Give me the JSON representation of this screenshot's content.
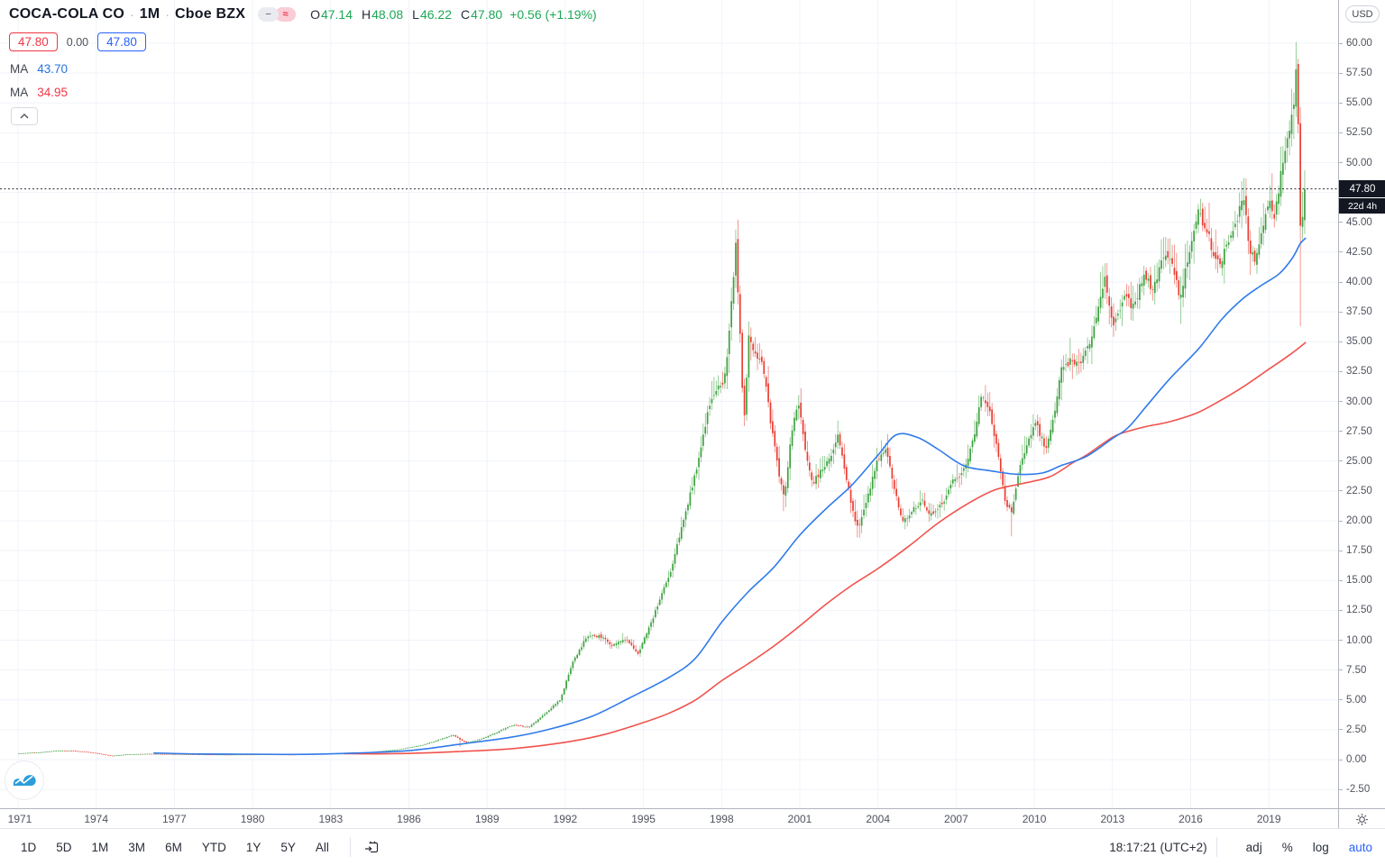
{
  "header": {
    "symbol": "COCA-COLA CO",
    "separator": "·",
    "interval": "1M",
    "exchange": "Cboe BZX",
    "toggle_icons": {
      "hide": "−",
      "approx": "≈"
    },
    "ohlc": {
      "o_label": "O",
      "o": "47.14",
      "h_label": "H",
      "h": "48.08",
      "l_label": "L",
      "l": "46.22",
      "c_label": "C",
      "c": "47.80",
      "change": "+0.56 (+1.19%)"
    },
    "price_boxes": {
      "sell": "47.80",
      "spread": "0.00",
      "buy": "47.80"
    },
    "ma1": {
      "label": "MA",
      "value": "43.70",
      "color": "#2f7bea"
    },
    "ma2": {
      "label": "MA",
      "value": "34.95",
      "color": "#f23645"
    }
  },
  "price_axis": {
    "currency": "USD",
    "current_price": "47.80",
    "countdown": "22d 4h",
    "ticks": [
      "60.00",
      "57.50",
      "55.00",
      "52.50",
      "50.00",
      "45.00",
      "42.50",
      "40.00",
      "37.50",
      "35.00",
      "32.50",
      "30.00",
      "27.50",
      "25.00",
      "22.50",
      "20.00",
      "17.50",
      "15.00",
      "12.50",
      "10.00",
      "7.50",
      "5.00",
      "2.50",
      "0.00",
      "-2.50"
    ],
    "tick_values": [
      60,
      57.5,
      55,
      52.5,
      50,
      45,
      42.5,
      40,
      37.5,
      35,
      32.5,
      30,
      27.5,
      25,
      22.5,
      20,
      17.5,
      15,
      12.5,
      10,
      7.5,
      5,
      2.5,
      0,
      -2.5
    ]
  },
  "time_axis": {
    "years": [
      1971,
      1974,
      1977,
      1980,
      1983,
      1986,
      1989,
      1992,
      1995,
      1998,
      2001,
      2004,
      2007,
      2010,
      2013,
      2016,
      2019
    ]
  },
  "toolbar": {
    "ranges": [
      "1D",
      "5D",
      "1M",
      "3M",
      "6M",
      "YTD",
      "1Y",
      "5Y",
      "All"
    ],
    "clock": "18:17:21 (UTC+2)",
    "adj": "adj",
    "percent": "%",
    "log": "log",
    "auto": "auto"
  },
  "chart_data": {
    "type": "candlestick",
    "title": "COCA-COLA CO · 1M · Cboe BZX",
    "ylabel": "USD",
    "x_range": [
      1971,
      2020.6
    ],
    "y_range": [
      -2.5,
      60
    ],
    "y_step": 2.5,
    "grid": true,
    "current_price": 47.8,
    "colors": {
      "up": "#3da13f",
      "down": "#ea3d32",
      "ma_blue": "#2f7bea",
      "ma_red": "#f0524d",
      "grid": "#f0f3fa",
      "dotted_line": "#2a2e39",
      "label_bg": "#131722"
    },
    "close_anchors": [
      [
        1971.0,
        0.52
      ],
      [
        1971.8,
        0.6
      ],
      [
        1972.5,
        0.74
      ],
      [
        1973.2,
        0.72
      ],
      [
        1973.8,
        0.6
      ],
      [
        1974.6,
        0.31
      ],
      [
        1975.2,
        0.44
      ],
      [
        1976.0,
        0.48
      ],
      [
        1977.5,
        0.44
      ],
      [
        1979.0,
        0.41
      ],
      [
        1980.5,
        0.43
      ],
      [
        1981.5,
        0.41
      ],
      [
        1982.5,
        0.46
      ],
      [
        1983.5,
        0.56
      ],
      [
        1984.5,
        0.62
      ],
      [
        1985.5,
        0.82
      ],
      [
        1986.5,
        1.2
      ],
      [
        1987.7,
        2.05
      ],
      [
        1987.96,
        1.7,
        1.05,
        null
      ],
      [
        1988.2,
        1.4
      ],
      [
        1988.6,
        1.6
      ],
      [
        1989.2,
        2.1
      ],
      [
        1990.0,
        2.9
      ],
      [
        1990.6,
        2.7
      ],
      [
        1991.2,
        3.8
      ],
      [
        1991.8,
        5.0
      ],
      [
        1992.3,
        8.2
      ],
      [
        1992.8,
        10.2
      ],
      [
        1993.3,
        10.4
      ],
      [
        1993.8,
        9.6
      ],
      [
        1994.3,
        10.1
      ],
      [
        1994.8,
        8.9
      ],
      [
        1995.3,
        11.5
      ],
      [
        1996.0,
        15.5
      ],
      [
        1996.6,
        20.5
      ],
      [
        1997.1,
        25.0
      ],
      [
        1997.5,
        29.5
      ],
      [
        1997.8,
        31.0
      ],
      [
        1998.1,
        31.5
      ],
      [
        1998.3,
        36.0
      ],
      [
        1998.54,
        43.0,
        null,
        44.4
      ],
      [
        1998.7,
        36.0
      ],
      [
        1998.85,
        28.0
      ],
      [
        1999.05,
        35.5
      ],
      [
        1999.3,
        34.0
      ],
      [
        1999.6,
        33.0
      ],
      [
        1999.9,
        28.0
      ],
      [
        2000.2,
        24.0
      ],
      [
        2000.4,
        22.0,
        20.8,
        null
      ],
      [
        2000.7,
        27.5
      ],
      [
        2000.95,
        29.8
      ],
      [
        2001.2,
        26.0
      ],
      [
        2001.5,
        23.2
      ],
      [
        2001.9,
        24.5
      ],
      [
        2002.2,
        25.5
      ],
      [
        2002.45,
        27.2
      ],
      [
        2002.8,
        23.5
      ],
      [
        2003.1,
        20.0
      ],
      [
        2003.25,
        19.3,
        18.6,
        null
      ],
      [
        2003.6,
        22.0
      ],
      [
        2003.95,
        24.8
      ],
      [
        2004.3,
        26.2
      ],
      [
        2004.6,
        22.8
      ],
      [
        2004.95,
        19.9
      ],
      [
        2005.3,
        20.8
      ],
      [
        2005.7,
        21.6
      ],
      [
        2006.05,
        20.5
      ],
      [
        2006.5,
        21.5
      ],
      [
        2006.9,
        23.4
      ],
      [
        2007.3,
        24.2
      ],
      [
        2007.7,
        27.0
      ],
      [
        2007.95,
        30.4
      ],
      [
        2008.25,
        29.3
      ],
      [
        2008.6,
        26.0
      ],
      [
        2008.85,
        21.8
      ],
      [
        2009.13,
        20.5,
        18.7,
        null
      ],
      [
        2009.45,
        24.5
      ],
      [
        2009.8,
        26.8
      ],
      [
        2010.05,
        28.3
      ],
      [
        2010.45,
        25.8
      ],
      [
        2010.8,
        29.5
      ],
      [
        2011.0,
        32.5
      ],
      [
        2011.4,
        33.5
      ],
      [
        2011.75,
        33.0
      ],
      [
        2012.1,
        34.8
      ],
      [
        2012.5,
        38.0
      ],
      [
        2012.7,
        40.2
      ],
      [
        2013.05,
        36.3
      ],
      [
        2013.45,
        38.8
      ],
      [
        2013.8,
        37.8
      ],
      [
        2014.2,
        40.7
      ],
      [
        2014.55,
        39.3
      ],
      [
        2014.9,
        42.0
      ],
      [
        2015.15,
        42.3
      ],
      [
        2015.45,
        40.0
      ],
      [
        2015.63,
        38.6,
        36.5,
        null
      ],
      [
        2015.95,
        42.8
      ],
      [
        2016.3,
        45.8
      ],
      [
        2016.6,
        44.6
      ],
      [
        2016.9,
        42.0
      ],
      [
        2017.15,
        41.6
      ],
      [
        2017.5,
        43.5
      ],
      [
        2017.85,
        45.7
      ],
      [
        2018.04,
        47.3,
        null,
        48.6
      ],
      [
        2018.25,
        43.0
      ],
      [
        2018.45,
        42.0
      ],
      [
        2018.7,
        44.0
      ],
      [
        2019.0,
        46.8
      ],
      [
        2019.2,
        45.5
      ],
      [
        2019.45,
        48.8
      ],
      [
        2019.7,
        52.3
      ],
      [
        2019.95,
        54.3
      ],
      [
        2020.04,
        57.5,
        null,
        60.1
      ],
      [
        2020.13,
        53.4
      ],
      [
        2020.21,
        44.3,
        36.3,
        null
      ],
      [
        2020.3,
        45.9
      ],
      [
        2020.38,
        47.8
      ]
    ],
    "ma_blue": {
      "name": "MA",
      "last": 43.7,
      "anchors": [
        [
          1976.2,
          0.55
        ],
        [
          1978,
          0.47
        ],
        [
          1980,
          0.45
        ],
        [
          1982,
          0.44
        ],
        [
          1984,
          0.55
        ],
        [
          1986,
          0.75
        ],
        [
          1988,
          1.3
        ],
        [
          1990,
          1.9
        ],
        [
          1991.5,
          2.6
        ],
        [
          1993,
          3.6
        ],
        [
          1994.5,
          5.2
        ],
        [
          1996,
          6.9
        ],
        [
          1997,
          8.5
        ],
        [
          1998,
          11.5
        ],
        [
          1999,
          14.0
        ],
        [
          2000,
          16.1
        ],
        [
          2001,
          18.8
        ],
        [
          2002,
          21.0
        ],
        [
          2003,
          23.0
        ],
        [
          2004,
          25.5
        ],
        [
          2004.7,
          27.2
        ],
        [
          2005.5,
          27.0
        ],
        [
          2006.3,
          26.0
        ],
        [
          2007.3,
          24.6
        ],
        [
          2008.3,
          24.2
        ],
        [
          2009.3,
          23.9
        ],
        [
          2010.3,
          24.0
        ],
        [
          2011,
          24.6
        ],
        [
          2012,
          25.4
        ],
        [
          2013,
          26.9
        ],
        [
          2013.6,
          27.8
        ],
        [
          2014.3,
          29.6
        ],
        [
          2015.2,
          31.9
        ],
        [
          2016.3,
          34.4
        ],
        [
          2017.2,
          36.9
        ],
        [
          2018,
          38.6
        ],
        [
          2018.7,
          39.7
        ],
        [
          2019.4,
          40.7
        ],
        [
          2019.9,
          42.0
        ],
        [
          2020.2,
          43.2
        ],
        [
          2020.42,
          43.7
        ]
      ]
    },
    "ma_red": {
      "name": "MA",
      "last": 34.95,
      "anchors": [
        [
          1983.5,
          0.5
        ],
        [
          1985,
          0.48
        ],
        [
          1986.5,
          0.55
        ],
        [
          1988,
          0.68
        ],
        [
          1990,
          0.92
        ],
        [
          1992,
          1.45
        ],
        [
          1993.5,
          2.1
        ],
        [
          1995,
          3.1
        ],
        [
          1996,
          3.9
        ],
        [
          1997,
          5.0
        ],
        [
          1998,
          6.6
        ],
        [
          1999,
          8.0
        ],
        [
          2000,
          9.5
        ],
        [
          2001,
          11.2
        ],
        [
          2002,
          13.0
        ],
        [
          2003,
          14.6
        ],
        [
          2004,
          16.0
        ],
        [
          2005.2,
          17.9
        ],
        [
          2006.3,
          19.8
        ],
        [
          2007.5,
          21.5
        ],
        [
          2008.5,
          22.6
        ],
        [
          2009.5,
          23.1
        ],
        [
          2010.6,
          23.7
        ],
        [
          2011.5,
          24.9
        ],
        [
          2012,
          25.5
        ],
        [
          2013,
          27.0
        ],
        [
          2013.6,
          27.5
        ],
        [
          2014.3,
          27.9
        ],
        [
          2015.2,
          28.3
        ],
        [
          2016.2,
          29.0
        ],
        [
          2017,
          29.9
        ],
        [
          2018,
          31.2
        ],
        [
          2019,
          32.7
        ],
        [
          2019.8,
          33.9
        ],
        [
          2020.42,
          34.95
        ]
      ]
    }
  }
}
